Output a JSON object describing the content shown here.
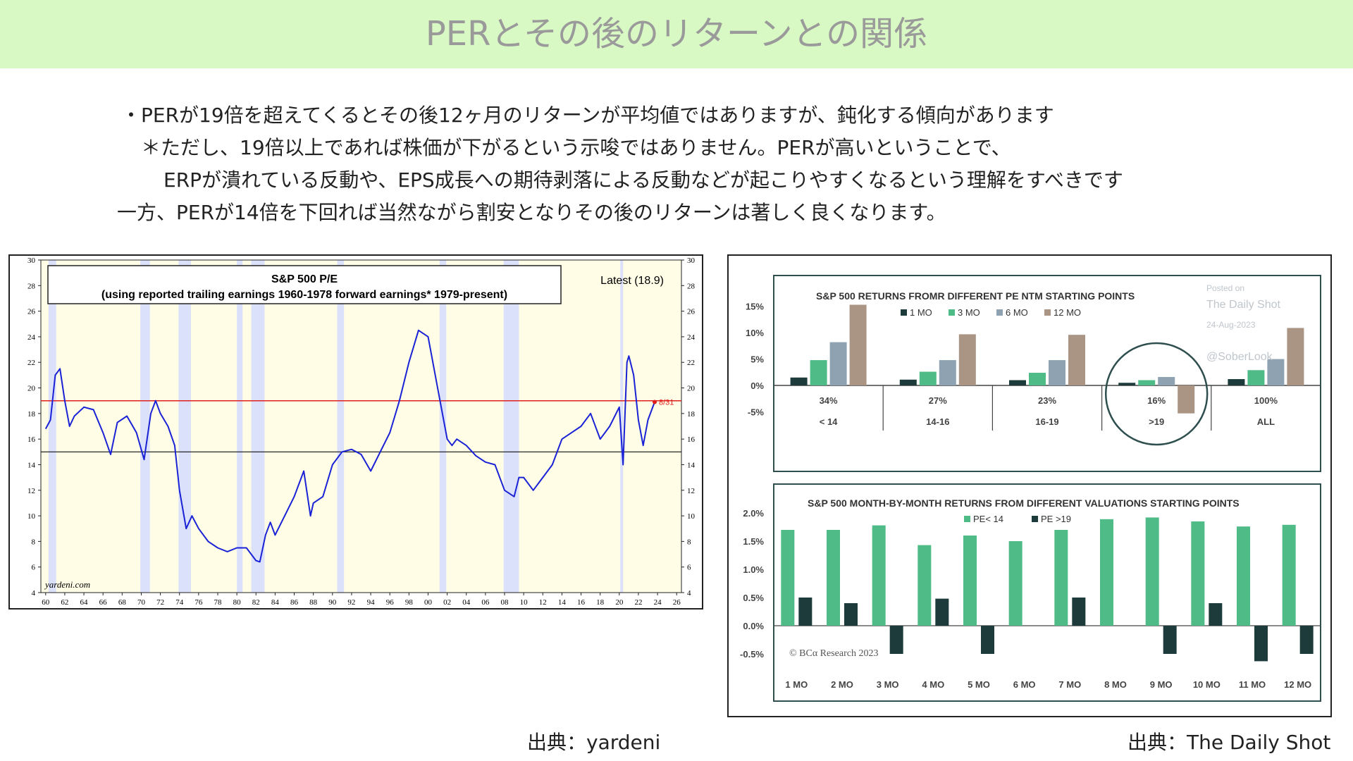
{
  "page_title": "PERとその後のリターンとの関係",
  "bullets": [
    "・PERが19倍を超えてくるとその後12ヶ月のリターンが平均値ではありますが、鈍化する傾向があります",
    "＊ただし、19倍以上であれば株価が下がるという示唆ではありません。PERが高いということで、",
    "ERPが潰れている反動や、EPS成長への期待剥落による反動などが起こりやすくなるという理解をすべきです",
    "一方、PERが14倍を下回れば当然ながら割安となりその後のリターンは著しく良くなります。"
  ],
  "sources": {
    "left": "出典：yardeni",
    "right": "出典：The Daily Shot"
  },
  "colors": {
    "title_bg": "#d9f9c4",
    "title_text": "#9a9a9a",
    "pe_line": "#1a22d6",
    "ref_19": "#e0201c",
    "chart_bg": "#fffde6",
    "recession": "#dbe1fb",
    "mo1": "#1d3b3b",
    "mo3": "#4fbb86",
    "mo6": "#8ea2b1",
    "mo12": "#aa9584"
  },
  "chart_data": [
    {
      "type": "line",
      "title": "S&P 500 P/E",
      "subtitle": "(using reported trailing earnings 1960-1978 forward earnings* 1979-present)",
      "annotation": "Latest (18.9)",
      "latest_label": "8/31",
      "watermark": "yardeni.com",
      "x_tick_labels": [
        "60",
        "62",
        "64",
        "66",
        "68",
        "70",
        "72",
        "74",
        "76",
        "78",
        "80",
        "82",
        "84",
        "86",
        "88",
        "90",
        "92",
        "94",
        "96",
        "98",
        "00",
        "02",
        "04",
        "06",
        "08",
        "10",
        "12",
        "14",
        "16",
        "18",
        "20",
        "22",
        "24",
        "26"
      ],
      "y_ticks": [
        4,
        6,
        8,
        10,
        12,
        14,
        16,
        18,
        20,
        22,
        24,
        26,
        28,
        30
      ],
      "ylim": [
        4,
        30
      ],
      "xlim": [
        1959.5,
        2026.5
      ],
      "reference_lines": [
        19,
        15
      ],
      "recessions": [
        [
          1960.3,
          1961.1
        ],
        [
          1969.9,
          1970.9
        ],
        [
          1973.9,
          1975.2
        ],
        [
          1980.0,
          1980.6
        ],
        [
          1981.5,
          1982.9
        ],
        [
          1990.5,
          1991.2
        ],
        [
          2001.2,
          2001.9
        ],
        [
          2007.9,
          2009.5
        ],
        [
          2020.1,
          2020.4
        ]
      ],
      "series": [
        {
          "x": [
            1960,
            1960.5,
            1961,
            1961.5,
            1962,
            1962.5,
            1963,
            1964,
            1965,
            1966,
            1966.8,
            1967.5,
            1968.5,
            1969.5,
            1970.3,
            1971,
            1971.5,
            1972,
            1972.8,
            1973.5,
            1974,
            1974.7,
            1975.3,
            1976,
            1977,
            1978,
            1979,
            1980,
            1981,
            1982,
            1982.4,
            1983,
            1983.5,
            1984,
            1985,
            1986,
            1987,
            1987.7,
            1988,
            1989,
            1990,
            1991,
            1992,
            1993,
            1994,
            1995,
            1996,
            1997,
            1998,
            1999,
            2000,
            2001,
            2001.5,
            2002,
            2002.5,
            2003,
            2004,
            2005,
            2006,
            2007,
            2008,
            2009,
            2009.5,
            2010,
            2011,
            2012,
            2013,
            2014,
            2015,
            2016,
            2017,
            2018,
            2019,
            2020,
            2020.4,
            2020.8,
            2021,
            2021.5,
            2022,
            2022.5,
            2023,
            2023.7
          ],
          "y": [
            16.8,
            17.5,
            21,
            21.5,
            19,
            17,
            17.8,
            18.5,
            18.3,
            16.5,
            14.8,
            17.3,
            17.8,
            16.5,
            14.4,
            18,
            19,
            18,
            17,
            15.5,
            12,
            9,
            10,
            9,
            8,
            7.5,
            7.2,
            7.5,
            7.5,
            6.5,
            6.4,
            8.5,
            9.5,
            8.5,
            10,
            11.5,
            13.5,
            10,
            11,
            11.5,
            14,
            15,
            15.2,
            14.8,
            13.5,
            15,
            16.5,
            19,
            22,
            24.5,
            24,
            20,
            18,
            16,
            15.5,
            16,
            15.5,
            14.7,
            14.2,
            14,
            12,
            11.5,
            13,
            13,
            12,
            13,
            14,
            16,
            16.5,
            17,
            18,
            16,
            17,
            18.5,
            14,
            22,
            22.5,
            21,
            17.5,
            15.5,
            17.5,
            18.9
          ]
        }
      ]
    },
    {
      "type": "bar",
      "title": "S&P 500 RETURNS FROMR DIFFERENT PE NTM STARTING POINTS",
      "y_tick_labels": [
        "15%",
        "10%",
        "5%",
        "0%",
        "-5%"
      ],
      "ylim": [
        -8,
        17
      ],
      "categories": [
        "< 14",
        "14-16",
        "16-19",
        ">19",
        "ALL"
      ],
      "category_shares": [
        "34%",
        "27%",
        "23%",
        "16%",
        "100%"
      ],
      "highlighted_category": ">19",
      "series": [
        {
          "name": "1 MO",
          "values": [
            1.5,
            1.1,
            1.0,
            0.5,
            1.2
          ]
        },
        {
          "name": "3 MO",
          "values": [
            4.8,
            2.6,
            2.4,
            1.0,
            2.9
          ]
        },
        {
          "name": "6 MO",
          "values": [
            8.2,
            4.8,
            4.8,
            1.6,
            5.0
          ]
        },
        {
          "name": "12 MO",
          "values": [
            15.3,
            9.7,
            9.6,
            -5.3,
            10.9
          ]
        }
      ],
      "watermark": [
        "Posted on",
        "The Daily Shot",
        "24-Aug-2023",
        "@SoberLook"
      ]
    },
    {
      "type": "bar",
      "title": "S&P 500 MONTH-BY-MONTH RETURNS FROM DIFFERENT VALUATIONS STARTING POINTS",
      "y_tick_labels": [
        "2.0%",
        "1.5%",
        "1.0%",
        "0.5%",
        "0.0%",
        "-0.5%"
      ],
      "ylim": [
        -0.85,
        2.15
      ],
      "categories": [
        "1 MO",
        "2 MO",
        "3 MO",
        "4 MO",
        "5 MO",
        "6 MO",
        "7 MO",
        "8 MO",
        "9 MO",
        "10 MO",
        "11 MO",
        "12 MO"
      ],
      "series": [
        {
          "name": "PE< 14",
          "values": [
            1.7,
            1.7,
            1.78,
            1.43,
            1.6,
            1.5,
            1.7,
            1.89,
            1.92,
            1.85,
            1.76,
            1.79
          ]
        },
        {
          "name": "PE >19",
          "values": [
            0.5,
            0.4,
            -0.5,
            0.48,
            -0.5,
            0,
            0.5,
            0,
            -0.5,
            0.4,
            -0.63,
            -0.5
          ]
        }
      ],
      "copyright": "© BCα Research 2023"
    }
  ]
}
